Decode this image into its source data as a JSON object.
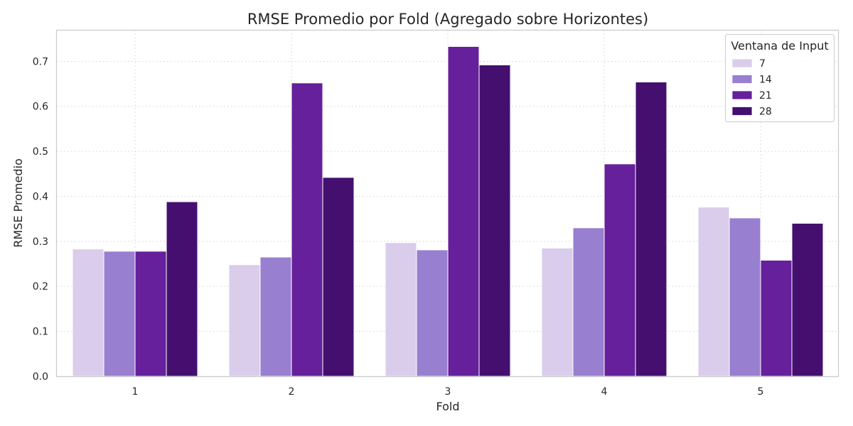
{
  "chart_data": {
    "type": "bar",
    "title": "RMSE Promedio por Fold (Agregado sobre Horizontes)",
    "xlabel": "Fold",
    "ylabel": "RMSE Promedio",
    "categories": [
      "1",
      "2",
      "3",
      "4",
      "5"
    ],
    "ylim": [
      0,
      0.77
    ],
    "yticks": [
      "0.0",
      "0.1",
      "0.2",
      "0.3",
      "0.4",
      "0.5",
      "0.6",
      "0.7"
    ],
    "grid": true,
    "legend_title": "Ventana de Input",
    "legend_position": "top-right",
    "series": [
      {
        "name": "7",
        "color": "#d9cdeb",
        "values": [
          0.283,
          0.248,
          0.297,
          0.285,
          0.376
        ]
      },
      {
        "name": "14",
        "color": "#997fd0",
        "values": [
          0.278,
          0.265,
          0.281,
          0.33,
          0.352
        ]
      },
      {
        "name": "21",
        "color": "#66209b",
        "values": [
          0.278,
          0.652,
          0.733,
          0.472,
          0.258
        ]
      },
      {
        "name": "28",
        "color": "#450f70",
        "values": [
          0.388,
          0.442,
          0.692,
          0.654,
          0.34
        ]
      }
    ]
  }
}
